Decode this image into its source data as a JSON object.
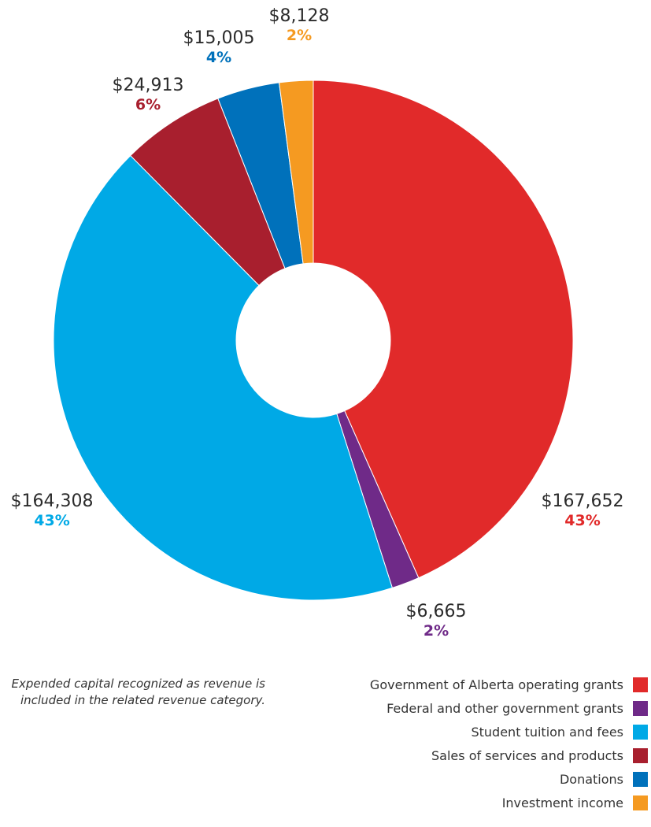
{
  "chart_data": {
    "type": "pie",
    "donut": true,
    "categories": [
      "Government of Alberta operating grants",
      "Federal and other government grants",
      "Student tuition and fees",
      "Sales of services and products",
      "Donations",
      "Investment income"
    ],
    "values": [
      167652,
      6665,
      164308,
      24913,
      15005,
      8128
    ],
    "value_labels": [
      "$167,652",
      "$6,665",
      "$164,308",
      "$24,913",
      "$15,005",
      "$8,128"
    ],
    "percent_labels": [
      "43%",
      "2%",
      "43%",
      "6%",
      "4%",
      "2%"
    ],
    "colors": [
      "#e12a2a",
      "#6f2a88",
      "#00a9e6",
      "#a81f2e",
      "#0071bb",
      "#f59a21"
    ],
    "legend_position": "bottom-right",
    "note": "Expended capital recognized as revenue is included in the related revenue category."
  }
}
